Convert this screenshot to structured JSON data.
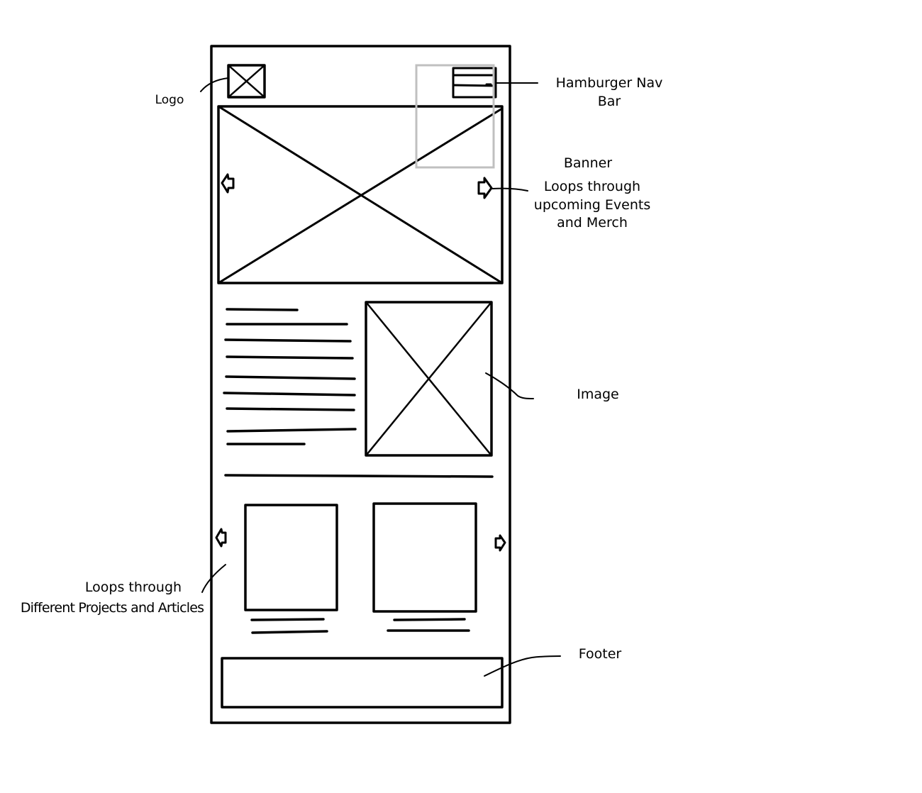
{
  "annotations": {
    "logo": "Logo",
    "hamburger_line1": "Hamburger Nav",
    "hamburger_line2": "Bar",
    "banner_title": "Banner",
    "banner_line1": "Loops through",
    "banner_line2": "upcoming Events",
    "banner_line3": "and Merch",
    "image": "Image",
    "carousel_line1": "Loops through",
    "carousel_line2": "Different Projects and Articles",
    "footer": "Footer"
  },
  "colors": {
    "ink": "#000000",
    "highlight": "#c0c0c0",
    "background": "#ffffff"
  }
}
